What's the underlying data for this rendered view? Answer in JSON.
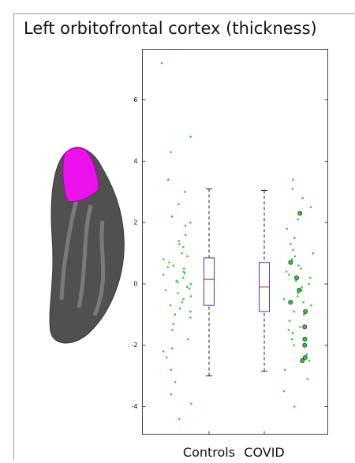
{
  "chart_data": {
    "type": "box",
    "title": "Left orbitofrontal cortex (thickness)",
    "ylim": [
      -4.9,
      7.65
    ],
    "yticks": [
      -4,
      -2,
      0,
      2,
      4,
      6
    ],
    "point_color": "#2ecc2e",
    "box_color": "#3a3acc",
    "median_color": "#cc2222",
    "groups": [
      {
        "name": "Controls",
        "box": {
          "whisker_low": -3.0,
          "q1": -0.7,
          "median": 0.15,
          "q3": 0.85,
          "whisker_high": 3.1
        },
        "points": [
          7.2,
          4.8,
          4.3,
          3.4,
          3.0,
          2.6,
          2.2,
          1.9,
          1.6,
          1.4,
          1.2,
          1.0,
          0.9,
          0.7,
          0.6,
          0.5,
          0.4,
          0.3,
          0.2,
          0.1,
          0.0,
          -0.1,
          -0.2,
          -0.3,
          -0.4,
          -0.5,
          -0.6,
          -0.8,
          -0.9,
          -1.1,
          -1.3,
          -1.5,
          -1.8,
          -2.1,
          -2.4,
          -2.8,
          -3.2,
          -3.6,
          -3.9,
          -4.4,
          0.35,
          -0.15,
          0.8,
          -0.7,
          1.3,
          0.05,
          -1.0,
          0.55,
          2.0,
          -2.2
        ]
      },
      {
        "name": "COVID",
        "box": {
          "whisker_low": -2.85,
          "q1": -0.9,
          "median": -0.1,
          "q3": 0.7,
          "whisker_high": 3.05
        },
        "points": [
          3.4,
          3.1,
          2.8,
          2.5,
          2.1,
          1.8,
          1.5,
          1.3,
          1.1,
          0.9,
          0.8,
          0.6,
          0.5,
          0.3,
          0.2,
          0.1,
          0.0,
          -0.1,
          -0.2,
          -0.3,
          -0.4,
          -0.6,
          -0.7,
          -0.9,
          -1.0,
          -1.2,
          -1.4,
          -1.6,
          -1.8,
          -2.0,
          -2.3,
          -2.5,
          -2.8,
          -3.1,
          -3.5,
          -4.0,
          0.4,
          -0.5,
          1.0,
          -1.5
        ],
        "highlighted": [
          2.3,
          0.7,
          0.2,
          -0.2,
          -0.6,
          -0.9,
          -1.4,
          -1.8,
          -2.0,
          -2.4,
          -2.5
        ]
      }
    ]
  }
}
